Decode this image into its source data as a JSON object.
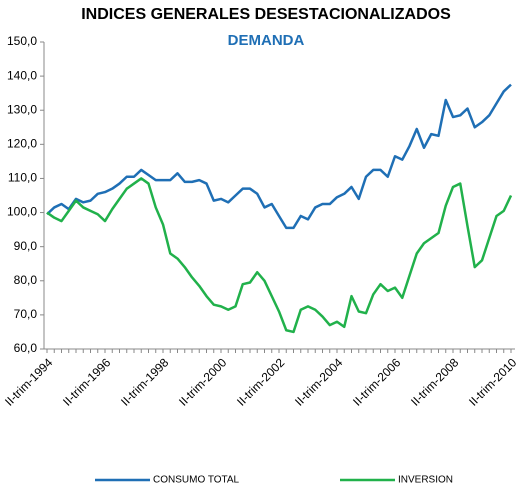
{
  "chart_data": {
    "type": "line",
    "title": "INDICES GENERALES DESESTACIONALIZADOS",
    "subtitle": "DEMANDA",
    "categories": [
      "II-trim-1994",
      null,
      null,
      null,
      null,
      null,
      null,
      null,
      "II-trim-1996",
      null,
      null,
      null,
      null,
      null,
      null,
      null,
      "II-trim-1998",
      null,
      null,
      null,
      null,
      null,
      null,
      null,
      "II-trim-2000",
      null,
      null,
      null,
      null,
      null,
      null,
      null,
      "II-trim-2002",
      null,
      null,
      null,
      null,
      null,
      null,
      null,
      "II-trim-2004",
      null,
      null,
      null,
      null,
      null,
      null,
      null,
      "II-trim-2006",
      null,
      null,
      null,
      null,
      null,
      null,
      null,
      "II-trim-2008",
      null,
      null,
      null,
      null,
      null,
      null,
      null,
      "II-trim-2010"
    ],
    "series": [
      {
        "name": "CONSUMO TOTAL",
        "color": "#1f6fb5",
        "values": [
          99.5,
          101.5,
          102.5,
          101,
          104,
          103,
          103.5,
          105.5,
          106,
          107,
          108.5,
          110.5,
          110.5,
          112.5,
          111,
          109.5,
          109.5,
          109.5,
          111.5,
          109,
          109,
          109.5,
          108.5,
          103.5,
          104,
          103,
          105,
          107,
          107,
          105.5,
          101.5,
          102.5,
          99,
          95.5,
          95.5,
          99,
          98,
          101.5,
          102.5,
          102.5,
          104.5,
          105.5,
          107.5,
          104,
          110.5,
          112.5,
          112.5,
          110.5,
          116.5,
          115.5,
          119.5,
          124.5,
          119,
          123,
          122.5,
          133,
          128,
          128.5,
          130.5,
          125,
          126.5,
          128.5,
          132,
          135.5,
          137.5
        ]
      },
      {
        "name": "INVERSION",
        "color": "#21b14b",
        "values": [
          100,
          98.5,
          97.5,
          100.5,
          103.5,
          101.5,
          100.5,
          99.5,
          97.5,
          101,
          104,
          107,
          108.5,
          110,
          108.5,
          101.5,
          96.5,
          88,
          86.5,
          84,
          81,
          78.5,
          75.5,
          73,
          72.5,
          71.5,
          72.5,
          79,
          79.5,
          82.5,
          80,
          75.5,
          71,
          65.5,
          65,
          71.5,
          72.5,
          71.5,
          69.5,
          67,
          68,
          66.5,
          75.5,
          71,
          70.5,
          76,
          79,
          77,
          78,
          75,
          81.5,
          88,
          91,
          92.5,
          94,
          102,
          107.5,
          108.5,
          96,
          84,
          86,
          92.5,
          99,
          100.5,
          105
        ]
      }
    ],
    "ylim": [
      60,
      150
    ],
    "yticks": [
      {
        "value": 60,
        "label": "60,0"
      },
      {
        "value": 70,
        "label": "70,0"
      },
      {
        "value": 80,
        "label": "80,0"
      },
      {
        "value": 90,
        "label": "90,0"
      },
      {
        "value": 100,
        "label": "100,0"
      },
      {
        "value": 110,
        "label": "110,0"
      },
      {
        "value": 120,
        "label": "120,0"
      },
      {
        "value": 130,
        "label": "130,0"
      },
      {
        "value": 140,
        "label": "140,0"
      },
      {
        "value": 150,
        "label": "150,0"
      }
    ],
    "grid": false,
    "legend": "bottom"
  }
}
